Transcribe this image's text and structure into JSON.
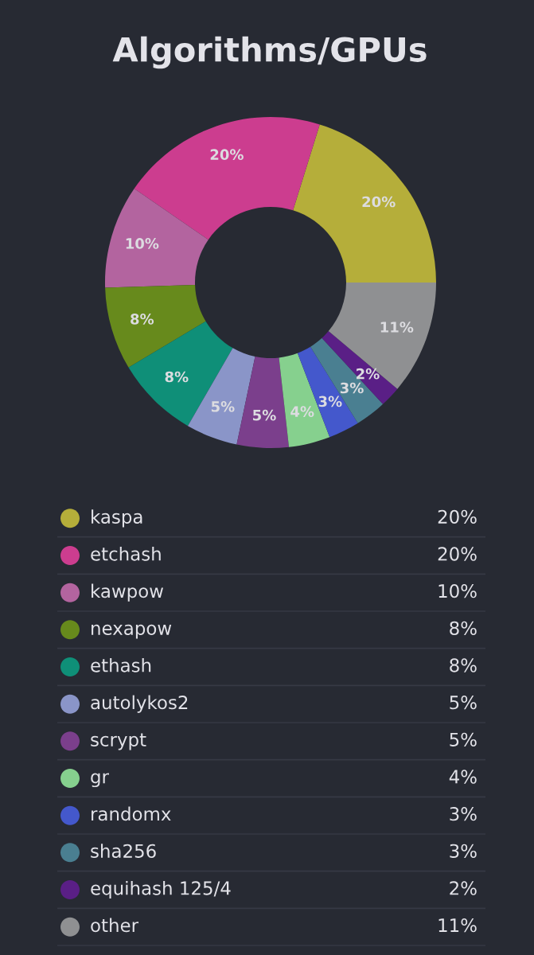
{
  "chart_data": {
    "type": "donut",
    "title": "Algorithms/GPUs",
    "categories": [
      "kaspa",
      "etchash",
      "kawpow",
      "nexapow",
      "ethash",
      "autolykos2",
      "scrypt",
      "gr",
      "randomx",
      "sha256",
      "equihash 125/4",
      "other"
    ],
    "values": [
      20,
      20,
      10,
      8,
      8,
      5,
      5,
      4,
      3,
      3,
      2,
      11
    ],
    "value_labels": [
      "20%",
      "20%",
      "10%",
      "8%",
      "8%",
      "5%",
      "5%",
      "4%",
      "3%",
      "3%",
      "2%",
      "11%"
    ],
    "colors": [
      "#b5ae3a",
      "#cc3d8f",
      "#b3649f",
      "#678a1c",
      "#0f8f78",
      "#8a95c8",
      "#7b3f8c",
      "#86d08e",
      "#4458cc",
      "#4a7f91",
      "#5a1f86",
      "#8f9092"
    ],
    "legend": "bottom"
  }
}
